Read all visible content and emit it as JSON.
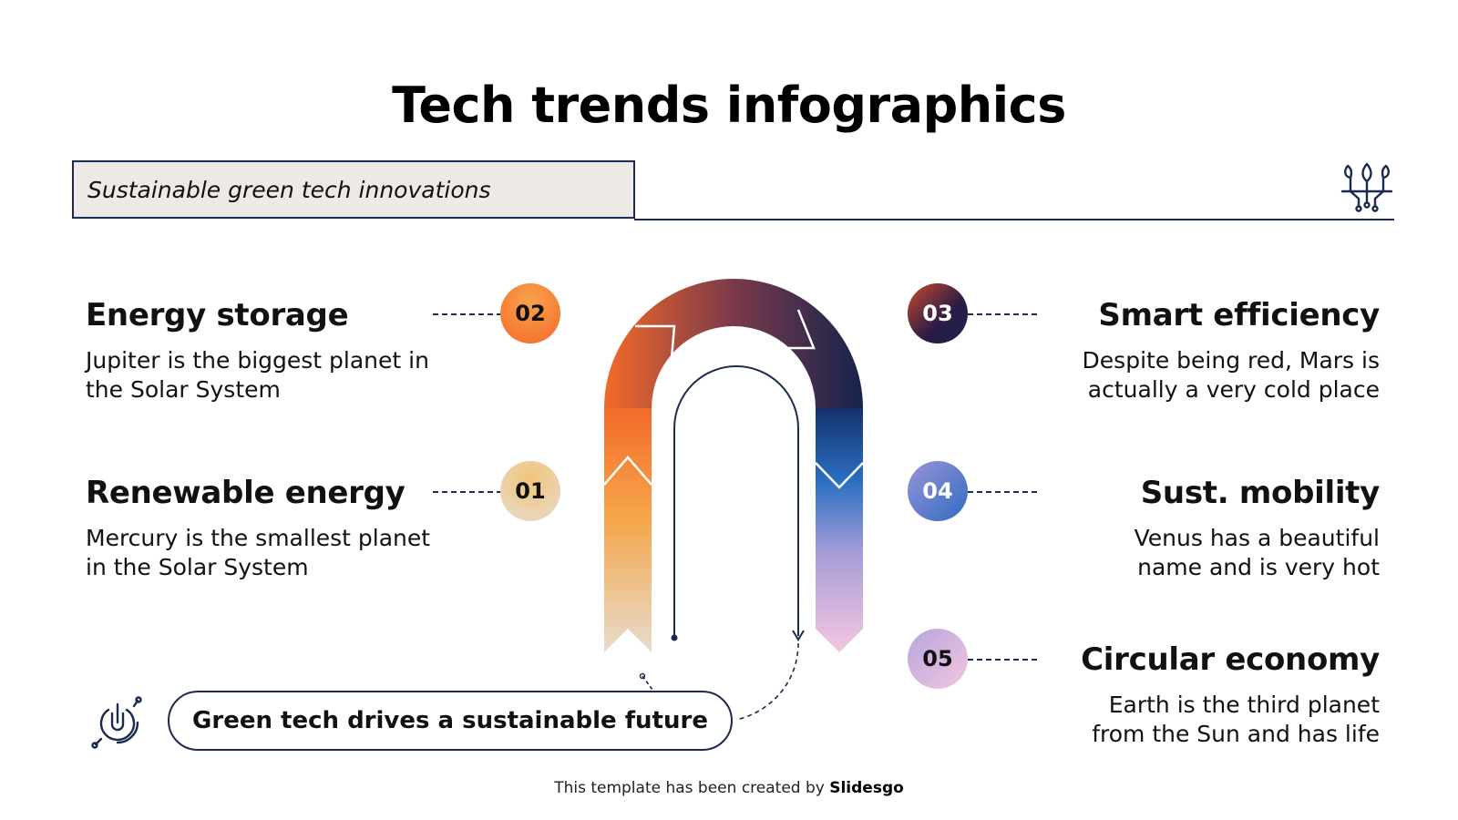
{
  "title": "Tech trends infographics",
  "subtitle": "Sustainable green tech innovations",
  "items": [
    {
      "number": "01",
      "title": "Renewable energy",
      "desc": "Mercury is the smallest planet in the Solar System"
    },
    {
      "number": "02",
      "title": "Energy storage",
      "desc": "Jupiter is the biggest planet in the Solar System"
    },
    {
      "number": "03",
      "title": "Smart efficiency",
      "desc": "Despite being red, Mars is actually a very cold place"
    },
    {
      "number": "04",
      "title": "Sust. mobility",
      "desc": "Venus has a beautiful name and is very hot"
    },
    {
      "number": "05",
      "title": "Circular economy",
      "desc": "Earth is the third planet from the Sun and has life"
    }
  ],
  "conclusion": "Green tech drives a sustainable future",
  "footer": {
    "prefix": "This template has been created by",
    "brand": "Slidesgo"
  },
  "colors": {
    "navy": "#1b2a4e",
    "orange": "#f47a2c",
    "sand": "#e9d8b4",
    "blue": "#2d6ec0",
    "lavender": "#b09bd6",
    "pink": "#f2c6df"
  },
  "icons": [
    "plant-circuit-icon",
    "power-circuit-icon"
  ]
}
